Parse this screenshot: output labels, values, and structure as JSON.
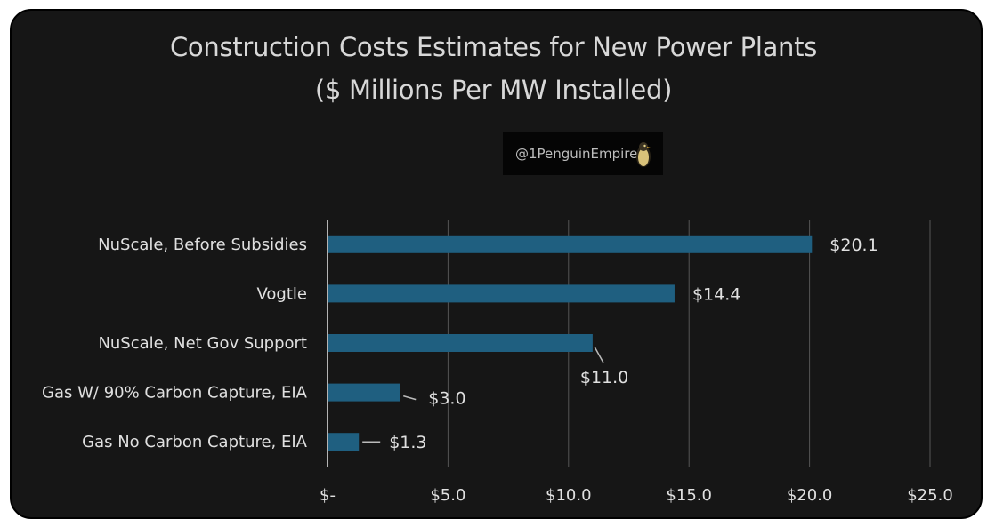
{
  "chart_data": {
    "type": "bar",
    "orientation": "horizontal",
    "title": "Construction Costs Estimates for New Power Plants",
    "subtitle": "($ Millions Per MW Installed)",
    "categories": [
      "NuScale,  Before Subsidies",
      "Vogtle",
      "NuScale, Net Gov Support",
      "Gas W/ 90% Carbon Capture, EIA",
      "Gas  No Carbon Capture, EIA"
    ],
    "values": [
      20.1,
      14.4,
      11.0,
      3.0,
      1.3
    ],
    "data_labels": [
      "$20.1",
      "$14.4",
      "$11.0",
      "$3.0",
      "$1.3"
    ],
    "xlim": [
      0,
      25
    ],
    "x_ticks": [
      0,
      5,
      10,
      15,
      20,
      25
    ],
    "x_tick_labels": [
      "$-",
      "$5.0",
      "$10.0",
      "$15.0",
      "$20.0",
      "$25.0"
    ],
    "grid": "vertical",
    "legend": "none",
    "colors": {
      "bar": "#1f5f80",
      "background": "#161616",
      "text": "#e0e0e0",
      "grid": "#555555"
    }
  },
  "watermark": {
    "text": "@1PenguinEmpire",
    "logo_icon": "penguin-icon"
  }
}
